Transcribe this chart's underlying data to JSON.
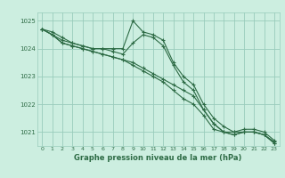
{
  "xlabel": "Graphe pression niveau de la mer (hPa)",
  "ylim": [
    1020.5,
    1025.3
  ],
  "xlim": [
    -0.5,
    23.5
  ],
  "yticks": [
    1021,
    1022,
    1023,
    1024,
    1025
  ],
  "xticks": [
    0,
    1,
    2,
    3,
    4,
    5,
    6,
    7,
    8,
    9,
    10,
    11,
    12,
    13,
    14,
    15,
    16,
    17,
    18,
    19,
    20,
    21,
    22,
    23
  ],
  "background_color": "#cceee0",
  "grid_color": "#99ccbb",
  "line_color": "#2d6b45",
  "series": [
    [
      1024.7,
      1024.6,
      1024.4,
      1024.2,
      1024.1,
      1024.0,
      1024.0,
      1024.0,
      1024.0,
      1025.0,
      1024.6,
      1024.5,
      1024.3,
      1023.5,
      1023.0,
      1022.7,
      1022.0,
      1021.5,
      1021.2,
      1021.0,
      1021.1,
      1021.1,
      1021.0,
      1020.7
    ],
    [
      1024.7,
      1024.5,
      1024.3,
      1024.2,
      1024.1,
      1024.0,
      1024.0,
      1023.9,
      1023.8,
      1024.2,
      1024.5,
      1024.4,
      1024.1,
      1023.4,
      1022.8,
      1022.5,
      1021.8,
      1021.3,
      1021.0,
      1020.9,
      1021.0,
      1021.0,
      1020.9,
      1020.65
    ],
    [
      1024.7,
      1024.5,
      1024.2,
      1024.1,
      1024.0,
      1023.9,
      1023.8,
      1023.7,
      1023.6,
      1023.5,
      1023.3,
      1023.1,
      1022.9,
      1022.7,
      1022.5,
      1022.3,
      1021.8,
      1021.3,
      1021.0,
      1021.0,
      1021.0,
      1021.0,
      1020.9,
      1020.6
    ],
    [
      1024.7,
      1024.5,
      1024.2,
      1024.1,
      1024.0,
      1023.9,
      1023.8,
      1023.7,
      1023.6,
      1023.4,
      1023.2,
      1023.0,
      1022.8,
      1022.5,
      1022.2,
      1022.0,
      1021.6,
      1021.1,
      1021.0,
      1020.9,
      1021.0,
      1021.0,
      1020.9,
      1020.6
    ]
  ]
}
